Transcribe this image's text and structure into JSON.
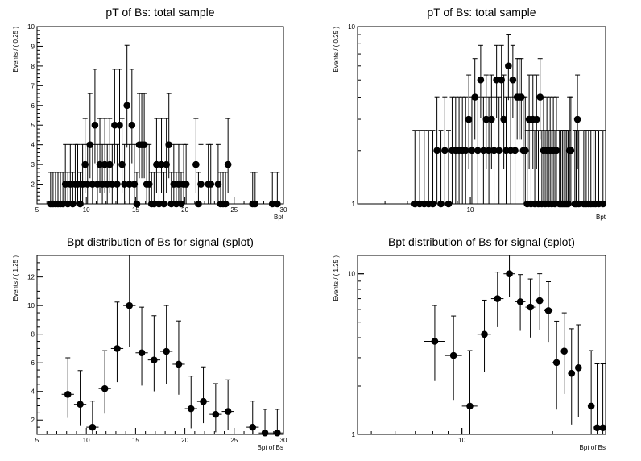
{
  "chart_data": [
    {
      "type": "scatter",
      "title": "pT of Bs: total sample",
      "xlabel": "Bpt",
      "ylabel": "Events / ( 0.25 )",
      "xscale": "linear",
      "yscale": "linear",
      "xlim": [
        5,
        30
      ],
      "ylim": [
        1,
        10
      ],
      "xticks": [
        5,
        10,
        15,
        20,
        25,
        30
      ],
      "yticks": [
        2,
        3,
        4,
        5,
        6,
        7,
        8,
        9,
        10
      ],
      "xerr": 0.125,
      "points": [
        [
          6.375,
          1
        ],
        [
          6.625,
          1
        ],
        [
          6.875,
          1
        ],
        [
          7.125,
          1
        ],
        [
          7.375,
          1
        ],
        [
          7.625,
          1
        ],
        [
          7.875,
          2
        ],
        [
          8.125,
          1
        ],
        [
          8.375,
          2
        ],
        [
          8.625,
          1
        ],
        [
          8.875,
          2
        ],
        [
          9.125,
          2
        ],
        [
          9.375,
          1
        ],
        [
          9.625,
          2
        ],
        [
          9.875,
          3
        ],
        [
          10.125,
          2
        ],
        [
          10.375,
          4
        ],
        [
          10.625,
          2
        ],
        [
          10.875,
          5
        ],
        [
          11.125,
          2
        ],
        [
          11.375,
          3
        ],
        [
          11.625,
          2
        ],
        [
          11.875,
          3
        ],
        [
          12.125,
          2
        ],
        [
          12.375,
          3
        ],
        [
          12.625,
          2
        ],
        [
          12.875,
          5
        ],
        [
          13.125,
          2
        ],
        [
          13.375,
          5
        ],
        [
          13.625,
          3
        ],
        [
          13.875,
          2
        ],
        [
          14.125,
          6
        ],
        [
          14.375,
          2
        ],
        [
          14.625,
          5
        ],
        [
          14.875,
          2
        ],
        [
          15.125,
          1
        ],
        [
          15.375,
          4
        ],
        [
          15.625,
          4
        ],
        [
          15.875,
          4
        ],
        [
          16.125,
          2
        ],
        [
          16.375,
          2
        ],
        [
          16.625,
          1
        ],
        [
          16.875,
          1
        ],
        [
          17.125,
          3
        ],
        [
          17.375,
          1
        ],
        [
          17.625,
          3
        ],
        [
          17.875,
          1
        ],
        [
          18.125,
          3
        ],
        [
          18.375,
          4
        ],
        [
          18.625,
          1
        ],
        [
          18.875,
          2
        ],
        [
          19.125,
          1
        ],
        [
          19.375,
          2
        ],
        [
          19.625,
          1
        ],
        [
          19.875,
          2
        ],
        [
          20.125,
          2
        ],
        [
          21.125,
          3
        ],
        [
          21.375,
          1
        ],
        [
          21.625,
          2
        ],
        [
          22.375,
          2
        ],
        [
          22.625,
          2
        ],
        [
          23.375,
          2
        ],
        [
          23.625,
          1
        ],
        [
          23.875,
          1
        ],
        [
          24.125,
          1
        ],
        [
          24.375,
          3
        ],
        [
          26.875,
          1
        ],
        [
          27.125,
          1
        ],
        [
          28.875,
          1
        ],
        [
          29.375,
          1
        ]
      ]
    },
    {
      "type": "scatter",
      "title": "pT of Bs: total sample",
      "xlabel": "Bpt",
      "ylabel": "Events / ( 0.25 )",
      "xscale": "log",
      "yscale": "log",
      "xlim": [
        4,
        30
      ],
      "ylim": [
        1,
        10
      ],
      "xticks": [
        10
      ],
      "yticks": [
        1,
        10
      ],
      "xerr": 0.125,
      "points": [
        [
          6.375,
          1
        ],
        [
          6.625,
          1
        ],
        [
          6.875,
          1
        ],
        [
          7.125,
          1
        ],
        [
          7.375,
          1
        ],
        [
          7.625,
          2
        ],
        [
          7.875,
          1
        ],
        [
          8.125,
          2
        ],
        [
          8.375,
          1
        ],
        [
          8.625,
          2
        ],
        [
          8.875,
          2
        ],
        [
          9.125,
          2
        ],
        [
          9.375,
          2
        ],
        [
          9.625,
          2
        ],
        [
          9.875,
          3
        ],
        [
          10.125,
          2
        ],
        [
          10.375,
          4
        ],
        [
          10.625,
          2
        ],
        [
          10.875,
          5
        ],
        [
          11.125,
          2
        ],
        [
          11.375,
          3
        ],
        [
          11.625,
          2
        ],
        [
          11.875,
          3
        ],
        [
          12.125,
          2
        ],
        [
          12.375,
          5
        ],
        [
          12.625,
          2
        ],
        [
          12.875,
          5
        ],
        [
          13.125,
          3
        ],
        [
          13.375,
          2
        ],
        [
          13.625,
          6
        ],
        [
          13.875,
          2
        ],
        [
          14.125,
          5
        ],
        [
          14.375,
          2
        ],
        [
          14.625,
          4
        ],
        [
          14.875,
          4
        ],
        [
          15.125,
          4
        ],
        [
          15.375,
          2
        ],
        [
          15.625,
          2
        ],
        [
          15.875,
          1
        ],
        [
          16.125,
          3
        ],
        [
          16.375,
          1
        ],
        [
          16.625,
          3
        ],
        [
          16.875,
          1
        ],
        [
          17.125,
          3
        ],
        [
          17.375,
          1
        ],
        [
          17.625,
          4
        ],
        [
          17.875,
          1
        ],
        [
          18.125,
          2
        ],
        [
          18.375,
          1
        ],
        [
          18.625,
          2
        ],
        [
          18.875,
          1
        ],
        [
          19.125,
          2
        ],
        [
          19.375,
          1
        ],
        [
          19.625,
          2
        ],
        [
          19.875,
          1
        ],
        [
          20.125,
          2
        ],
        [
          20.625,
          1
        ],
        [
          20.875,
          1
        ],
        [
          21.125,
          1
        ],
        [
          21.375,
          1
        ],
        [
          21.625,
          1
        ],
        [
          21.875,
          1
        ],
        [
          22.125,
          1
        ],
        [
          22.375,
          2
        ],
        [
          22.625,
          2
        ],
        [
          23.375,
          1
        ],
        [
          23.625,
          1
        ],
        [
          23.875,
          3
        ],
        [
          24.125,
          1
        ],
        [
          25.125,
          1
        ],
        [
          25.625,
          1
        ],
        [
          26.125,
          1
        ],
        [
          26.625,
          1
        ],
        [
          27.125,
          1
        ],
        [
          27.625,
          1
        ],
        [
          28.375,
          1
        ],
        [
          29.375,
          1
        ]
      ]
    },
    {
      "type": "scatter",
      "title": "Bpt distribution of Bs for signal (splot)",
      "xlabel": "Bpt of Bs",
      "ylabel": "Events / ( 1.25 )",
      "xscale": "linear",
      "yscale": "linear",
      "xlim": [
        5,
        30
      ],
      "ylim": [
        1,
        13.5
      ],
      "xticks": [
        5,
        10,
        15,
        20,
        25,
        30
      ],
      "yticks": [
        2,
        4,
        6,
        8,
        10,
        12
      ],
      "xerr": 0.625,
      "points": [
        [
          8.125,
          3.8
        ],
        [
          9.375,
          3.1
        ],
        [
          10.625,
          1.5
        ],
        [
          11.875,
          4.2
        ],
        [
          13.125,
          7.0
        ],
        [
          14.375,
          10.0
        ],
        [
          15.625,
          6.7
        ],
        [
          16.875,
          6.2
        ],
        [
          18.125,
          6.8
        ],
        [
          19.375,
          5.9
        ],
        [
          20.625,
          2.8
        ],
        [
          21.875,
          3.3
        ],
        [
          23.125,
          2.4
        ],
        [
          24.375,
          2.6
        ],
        [
          26.875,
          1.5
        ],
        [
          28.125,
          1.1
        ],
        [
          29.375,
          1.1
        ]
      ]
    },
    {
      "type": "scatter",
      "title": "Bpt distribution of Bs for signal (splot)",
      "xlabel": "Bpt of Bs",
      "ylabel": "Events / ( 1.25 )",
      "xscale": "log",
      "yscale": "log",
      "xlim": [
        4.5,
        30
      ],
      "ylim": [
        1,
        13
      ],
      "xticks": [
        10
      ],
      "yticks": [
        1,
        10
      ],
      "xerr": 0.625,
      "points": [
        [
          8.125,
          3.8
        ],
        [
          9.375,
          3.1
        ],
        [
          10.625,
          1.5
        ],
        [
          11.875,
          4.2
        ],
        [
          13.125,
          7.0
        ],
        [
          14.375,
          10.0
        ],
        [
          15.625,
          6.7
        ],
        [
          16.875,
          6.2
        ],
        [
          18.125,
          6.8
        ],
        [
          19.375,
          5.9
        ],
        [
          20.625,
          2.8
        ],
        [
          21.875,
          3.3
        ],
        [
          23.125,
          2.4
        ],
        [
          24.375,
          2.6
        ],
        [
          26.875,
          1.5
        ],
        [
          28.125,
          1.1
        ],
        [
          29.375,
          1.1
        ]
      ]
    }
  ]
}
